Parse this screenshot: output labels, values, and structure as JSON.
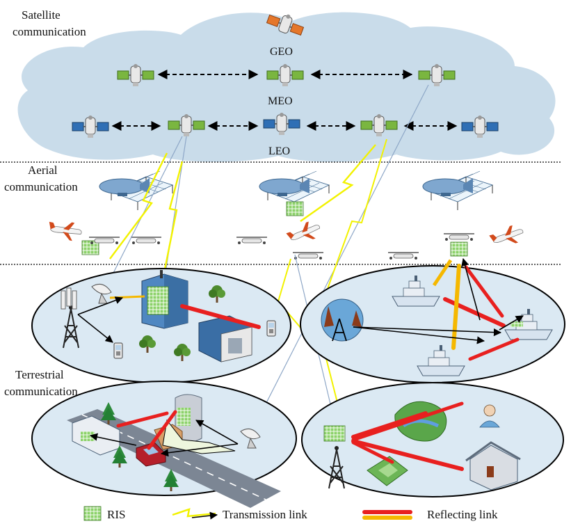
{
  "sections": {
    "satellite": [
      "Satellite",
      "communication"
    ],
    "aerial": [
      "Aerial",
      "communication"
    ],
    "terrestrial": [
      "Terrestrial",
      "communication"
    ]
  },
  "orbits": {
    "geo": "GEO",
    "meo": "MEO",
    "leo": "LEO"
  },
  "legend": {
    "ris": "RIS",
    "transmission": "Transmission link",
    "reflecting": "Reflecting link"
  },
  "colors": {
    "cloud": "#c9dcea",
    "ground": "#dbe9f3",
    "transmission": "#f2f200",
    "reflecting": "#e8201f",
    "reflecting_alt": "#f5b800",
    "ris": "#8cd26a"
  }
}
